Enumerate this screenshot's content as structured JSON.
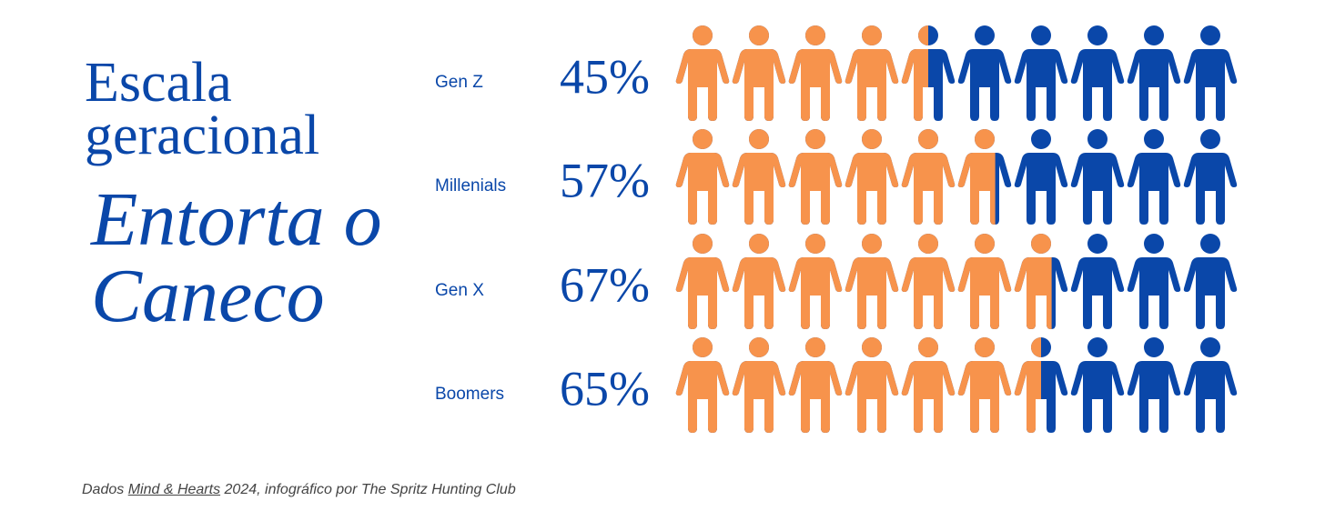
{
  "chart_data": {
    "type": "pictogram",
    "title": "Escala geracional",
    "subtitle": "Entorta o Caneco",
    "categories": [
      "Gen Z",
      "Millenials",
      "Gen X",
      "Boomers"
    ],
    "values": [
      45,
      57,
      67,
      65
    ],
    "value_labels": [
      "45%",
      "57%",
      "67%",
      "65%"
    ],
    "xlim": [
      0,
      100
    ],
    "color": "#f7934c",
    "background_color": "#0a47a9",
    "footnote": {
      "prefix": "Dados",
      "link": "Mind & Hearts",
      "suffix": "2024, infográfico por The Spritz Hunting Club"
    }
  }
}
